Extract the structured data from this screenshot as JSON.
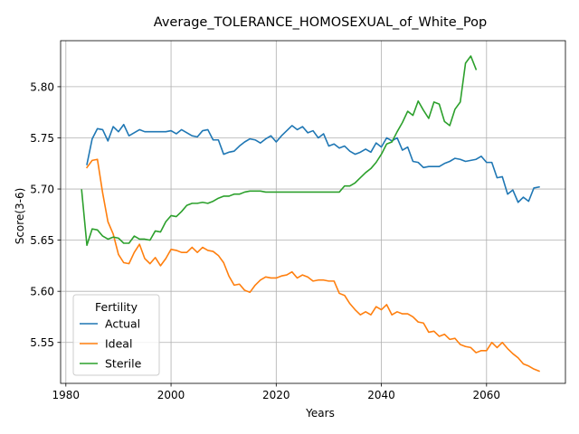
{
  "chart_data": {
    "type": "line",
    "title": "Average_TOLERANCE_HOMOSEXUAL_of_White_Pop",
    "xlabel": "Years",
    "ylabel": "Score(3-6)",
    "xlim": [
      1979,
      2075
    ],
    "ylim": [
      5.51,
      5.845
    ],
    "xticks": [
      1980,
      2000,
      2020,
      2040,
      2060
    ],
    "yticks": [
      5.55,
      5.6,
      5.65,
      5.7,
      5.75,
      5.8
    ],
    "ytick_labels": [
      "5.55",
      "5.60",
      "5.65",
      "5.70",
      "5.75",
      "5.80"
    ],
    "grid": true,
    "legend": {
      "title": "Fertility",
      "placement": "lower-left"
    },
    "series": [
      {
        "name": "Actual",
        "color": "#1f77b4",
        "x": [
          1984,
          1985,
          1986,
          1987,
          1988,
          1989,
          1990,
          1991,
          1992,
          1993,
          1994,
          1995,
          1996,
          1997,
          1998,
          1999,
          2000,
          2001,
          2002,
          2003,
          2004,
          2005,
          2006,
          2007,
          2008,
          2009,
          2010,
          2011,
          2012,
          2013,
          2014,
          2015,
          2016,
          2017,
          2018,
          2019,
          2020,
          2021,
          2022,
          2023,
          2024,
          2025,
          2026,
          2027,
          2028,
          2029,
          2030,
          2031,
          2032,
          2033,
          2034,
          2035,
          2036,
          2037,
          2038,
          2039,
          2040,
          2041,
          2042,
          2043,
          2044,
          2045,
          2046,
          2047,
          2048,
          2049,
          2050,
          2051,
          2052,
          2053,
          2054,
          2055,
          2056,
          2057,
          2058,
          2059,
          2060,
          2061,
          2062,
          2063,
          2064,
          2065,
          2066,
          2067,
          2068,
          2069,
          2070
        ],
        "values": [
          5.724,
          5.749,
          5.759,
          5.758,
          5.747,
          5.761,
          5.756,
          5.763,
          5.752,
          5.755,
          5.758,
          5.756,
          5.756,
          5.756,
          5.756,
          5.756,
          5.757,
          5.754,
          5.758,
          5.755,
          5.752,
          5.751,
          5.757,
          5.758,
          5.748,
          5.748,
          5.734,
          5.736,
          5.737,
          5.742,
          5.746,
          5.749,
          5.748,
          5.745,
          5.749,
          5.752,
          5.746,
          5.752,
          5.757,
          5.762,
          5.758,
          5.761,
          5.755,
          5.757,
          5.75,
          5.754,
          5.742,
          5.744,
          5.74,
          5.742,
          5.737,
          5.734,
          5.736,
          5.739,
          5.736,
          5.745,
          5.741,
          5.75,
          5.747,
          5.75,
          5.738,
          5.741,
          5.727,
          5.726,
          5.721,
          5.722,
          5.722,
          5.722,
          5.725,
          5.727,
          5.73,
          5.729,
          5.727,
          5.728,
          5.729,
          5.732,
          5.726,
          5.726,
          5.711,
          5.712,
          5.695,
          5.699,
          5.687,
          5.692,
          5.688,
          5.701,
          5.702
        ]
      },
      {
        "name": "Ideal",
        "color": "#ff7f0e",
        "x": [
          1984,
          1985,
          1986,
          1987,
          1988,
          1989,
          1990,
          1991,
          1992,
          1993,
          1994,
          1995,
          1996,
          1997,
          1998,
          1999,
          2000,
          2001,
          2002,
          2003,
          2004,
          2005,
          2006,
          2007,
          2008,
          2009,
          2010,
          2011,
          2012,
          2013,
          2014,
          2015,
          2016,
          2017,
          2018,
          2019,
          2020,
          2021,
          2022,
          2023,
          2024,
          2025,
          2026,
          2027,
          2028,
          2029,
          2030,
          2031,
          2032,
          2033,
          2034,
          2035,
          2036,
          2037,
          2038,
          2039,
          2040,
          2041,
          2042,
          2043,
          2044,
          2045,
          2046,
          2047,
          2048,
          2049,
          2050,
          2051,
          2052,
          2053,
          2054,
          2055,
          2056,
          2057,
          2058,
          2059,
          2060,
          2061,
          2062,
          2063,
          2064,
          2065,
          2066,
          2067,
          2068,
          2069,
          2070
        ],
        "values": [
          5.721,
          5.728,
          5.729,
          5.696,
          5.668,
          5.656,
          5.636,
          5.628,
          5.627,
          5.638,
          5.646,
          5.632,
          5.627,
          5.633,
          5.625,
          5.632,
          5.641,
          5.64,
          5.638,
          5.638,
          5.643,
          5.638,
          5.643,
          5.64,
          5.639,
          5.635,
          5.628,
          5.615,
          5.606,
          5.607,
          5.601,
          5.599,
          5.606,
          5.611,
          5.614,
          5.613,
          5.613,
          5.615,
          5.616,
          5.619,
          5.613,
          5.616,
          5.614,
          5.61,
          5.611,
          5.611,
          5.61,
          5.61,
          5.598,
          5.596,
          5.588,
          5.582,
          5.577,
          5.58,
          5.577,
          5.585,
          5.582,
          5.587,
          5.577,
          5.58,
          5.578,
          5.578,
          5.575,
          5.57,
          5.569,
          5.56,
          5.561,
          5.556,
          5.558,
          5.553,
          5.554,
          5.548,
          5.546,
          5.545,
          5.54,
          5.542,
          5.542,
          5.55,
          5.545,
          5.55,
          5.544,
          5.539,
          5.535,
          5.529,
          5.527,
          5.524,
          5.522
        ]
      },
      {
        "name": "Sterile",
        "color": "#2ca02c",
        "x": [
          1983,
          1984,
          1985,
          1986,
          1987,
          1988,
          1989,
          1990,
          1991,
          1992,
          1993,
          1994,
          1995,
          1996,
          1997,
          1998,
          1999,
          2000,
          2001,
          2002,
          2003,
          2004,
          2005,
          2006,
          2007,
          2008,
          2009,
          2010,
          2011,
          2012,
          2013,
          2014,
          2015,
          2016,
          2017,
          2018,
          2019,
          2020,
          2021,
          2022,
          2023,
          2024,
          2025,
          2026,
          2027,
          2028,
          2029,
          2030,
          2031,
          2032,
          2033,
          2034,
          2035,
          2036,
          2037,
          2038,
          2039,
          2040,
          2041,
          2042,
          2043,
          2044,
          2045,
          2046,
          2047,
          2048,
          2049,
          2050,
          2051,
          2052,
          2053,
          2054,
          2055,
          2056,
          2057,
          2058
        ],
        "values": [
          5.699,
          5.645,
          5.661,
          5.66,
          5.654,
          5.651,
          5.653,
          5.652,
          5.647,
          5.647,
          5.654,
          5.651,
          5.651,
          5.65,
          5.659,
          5.658,
          5.668,
          5.674,
          5.673,
          5.678,
          5.684,
          5.686,
          5.686,
          5.687,
          5.686,
          5.688,
          5.691,
          5.693,
          5.693,
          5.695,
          5.695,
          5.697,
          5.698,
          5.698,
          5.698,
          5.697,
          5.697,
          5.697,
          5.697,
          5.697,
          5.697,
          5.697,
          5.697,
          5.697,
          5.697,
          5.697,
          5.697,
          5.697,
          5.697,
          5.697,
          5.703,
          5.703,
          5.706,
          5.711,
          5.716,
          5.72,
          5.726,
          5.734,
          5.744,
          5.746,
          5.756,
          5.765,
          5.776,
          5.772,
          5.786,
          5.777,
          5.769,
          5.785,
          5.783,
          5.766,
          5.762,
          5.778,
          5.785,
          5.823,
          5.83,
          5.817
        ]
      }
    ]
  }
}
